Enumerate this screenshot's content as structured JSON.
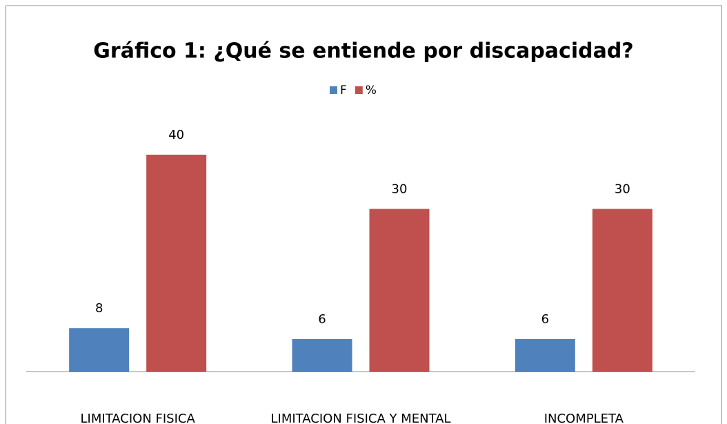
{
  "chart_data": {
    "type": "bar",
    "title": "Gráfico 1: ¿Qué se entiende por discapacidad?",
    "categories": [
      "LIMITACION FISICA",
      "LIMITACION FISICA Y MENTAL",
      "INCOMPLETA"
    ],
    "series": [
      {
        "name": "F",
        "color": "#4f81bd",
        "values": [
          8,
          6,
          6
        ]
      },
      {
        "name": "%",
        "color": "#c0504d",
        "values": [
          40,
          30,
          30
        ]
      }
    ]
  }
}
